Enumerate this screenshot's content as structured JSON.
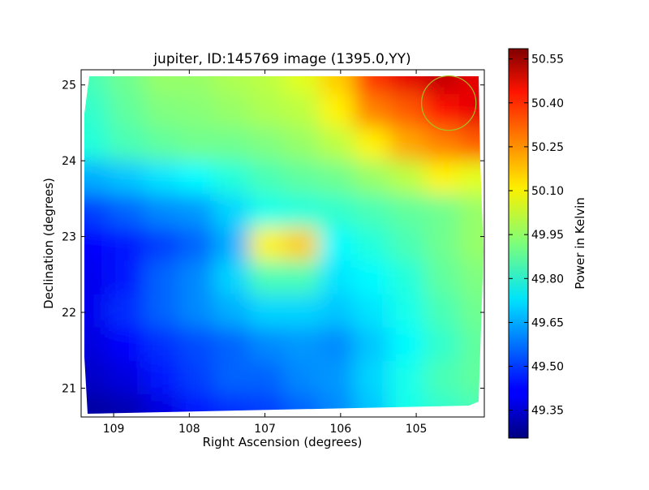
{
  "chart_data": {
    "type": "heatmap",
    "title": "jupiter, ID:145769 image (1395.0,YY)",
    "xlabel": "Right Ascension (degrees)",
    "ylabel": "Declination (degrees)",
    "xlim": [
      109.43,
      104.1
    ],
    "ylim": [
      20.62,
      25.2
    ],
    "xticks": [
      109,
      108,
      107,
      106,
      105
    ],
    "yticks": [
      21,
      22,
      23,
      24,
      25
    ],
    "colorbar": {
      "label": "Power in Kelvin",
      "range": [
        49.255,
        50.585
      ],
      "ticks": [
        "50.55",
        "50.40",
        "50.25",
        "50.10",
        "49.95",
        "49.80",
        "49.65",
        "49.50",
        "49.35"
      ],
      "colormap": "jet"
    },
    "grid_x": [
      109.3,
      108.84,
      108.37,
      107.91,
      107.45,
      106.98,
      106.52,
      106.05,
      105.59,
      105.13,
      104.66,
      104.2
    ],
    "grid_y": [
      25.1,
      24.66,
      24.22,
      23.78,
      23.34,
      22.9,
      22.46,
      22.02,
      21.58,
      21.14,
      20.7
    ],
    "values": [
      [
        49.85,
        49.9,
        49.95,
        49.95,
        49.98,
        50.0,
        50.05,
        50.15,
        50.35,
        50.45,
        50.5,
        50.45
      ],
      [
        49.82,
        49.88,
        49.92,
        49.93,
        49.95,
        49.98,
        50.0,
        50.1,
        50.25,
        50.3,
        50.4,
        50.45
      ],
      [
        49.8,
        49.85,
        49.88,
        49.9,
        49.9,
        49.92,
        49.95,
        50.0,
        50.1,
        50.2,
        50.25,
        50.3
      ],
      [
        49.65,
        49.68,
        49.72,
        49.75,
        49.8,
        49.85,
        49.88,
        49.9,
        49.95,
        50.0,
        50.1,
        50.05
      ],
      [
        49.5,
        49.55,
        49.6,
        49.62,
        49.7,
        49.78,
        49.8,
        49.82,
        49.85,
        49.88,
        49.9,
        49.95
      ],
      [
        49.42,
        49.45,
        49.5,
        49.55,
        49.65,
        50.1,
        50.15,
        49.75,
        49.8,
        49.85,
        49.9,
        49.95
      ],
      [
        49.4,
        49.45,
        49.55,
        49.6,
        49.7,
        49.85,
        49.85,
        49.72,
        49.75,
        49.8,
        49.88,
        49.92
      ],
      [
        49.4,
        49.48,
        49.55,
        49.6,
        49.65,
        49.7,
        49.7,
        49.68,
        49.72,
        49.78,
        49.85,
        49.9
      ],
      [
        49.38,
        49.42,
        49.48,
        49.52,
        49.55,
        49.6,
        49.62,
        49.6,
        49.68,
        49.75,
        49.82,
        49.88
      ],
      [
        49.35,
        49.38,
        49.45,
        49.5,
        49.55,
        49.55,
        49.6,
        49.62,
        49.7,
        49.78,
        49.85,
        49.88
      ],
      [
        49.3,
        49.32,
        49.38,
        49.45,
        49.48,
        49.5,
        49.55,
        49.6,
        49.68,
        49.78,
        49.82,
        49.85
      ]
    ],
    "annotation_circle": {
      "ra": 104.57,
      "dec": 24.76,
      "radius_deg": 0.36,
      "color": "#a8c020"
    }
  }
}
